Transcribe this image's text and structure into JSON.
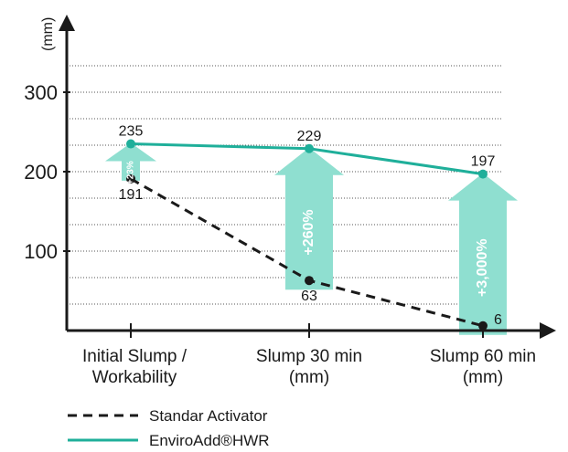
{
  "chart_data": {
    "type": "line",
    "ylabel": "(mm)",
    "ylim": [
      0,
      340
    ],
    "yticks": [
      100,
      200,
      300
    ],
    "grid_dotted_every": 33.33,
    "categories": [
      [
        "Initial Slump /",
        "Workability"
      ],
      [
        "Slump 30 min",
        "(mm)"
      ],
      [
        "Slump 60 min",
        "(mm)"
      ]
    ],
    "series": [
      {
        "name": "Standar Activator",
        "style": "dashed",
        "color": "#1a1a1a",
        "values": [
          191,
          63,
          6
        ],
        "labels": [
          "191",
          "63",
          "6"
        ]
      },
      {
        "name": "EnviroAdd®HWR",
        "style": "solid",
        "color": "#1faf9a",
        "values": [
          235,
          229,
          197
        ],
        "labels": [
          "235",
          "229",
          "197"
        ]
      }
    ],
    "improvement_labels": [
      "+23%",
      "+260%",
      "+3,000%"
    ],
    "arrow_color": "#8fdfd0",
    "legend": [
      "Standar Activator",
      "EnviroAdd®HWR"
    ]
  }
}
